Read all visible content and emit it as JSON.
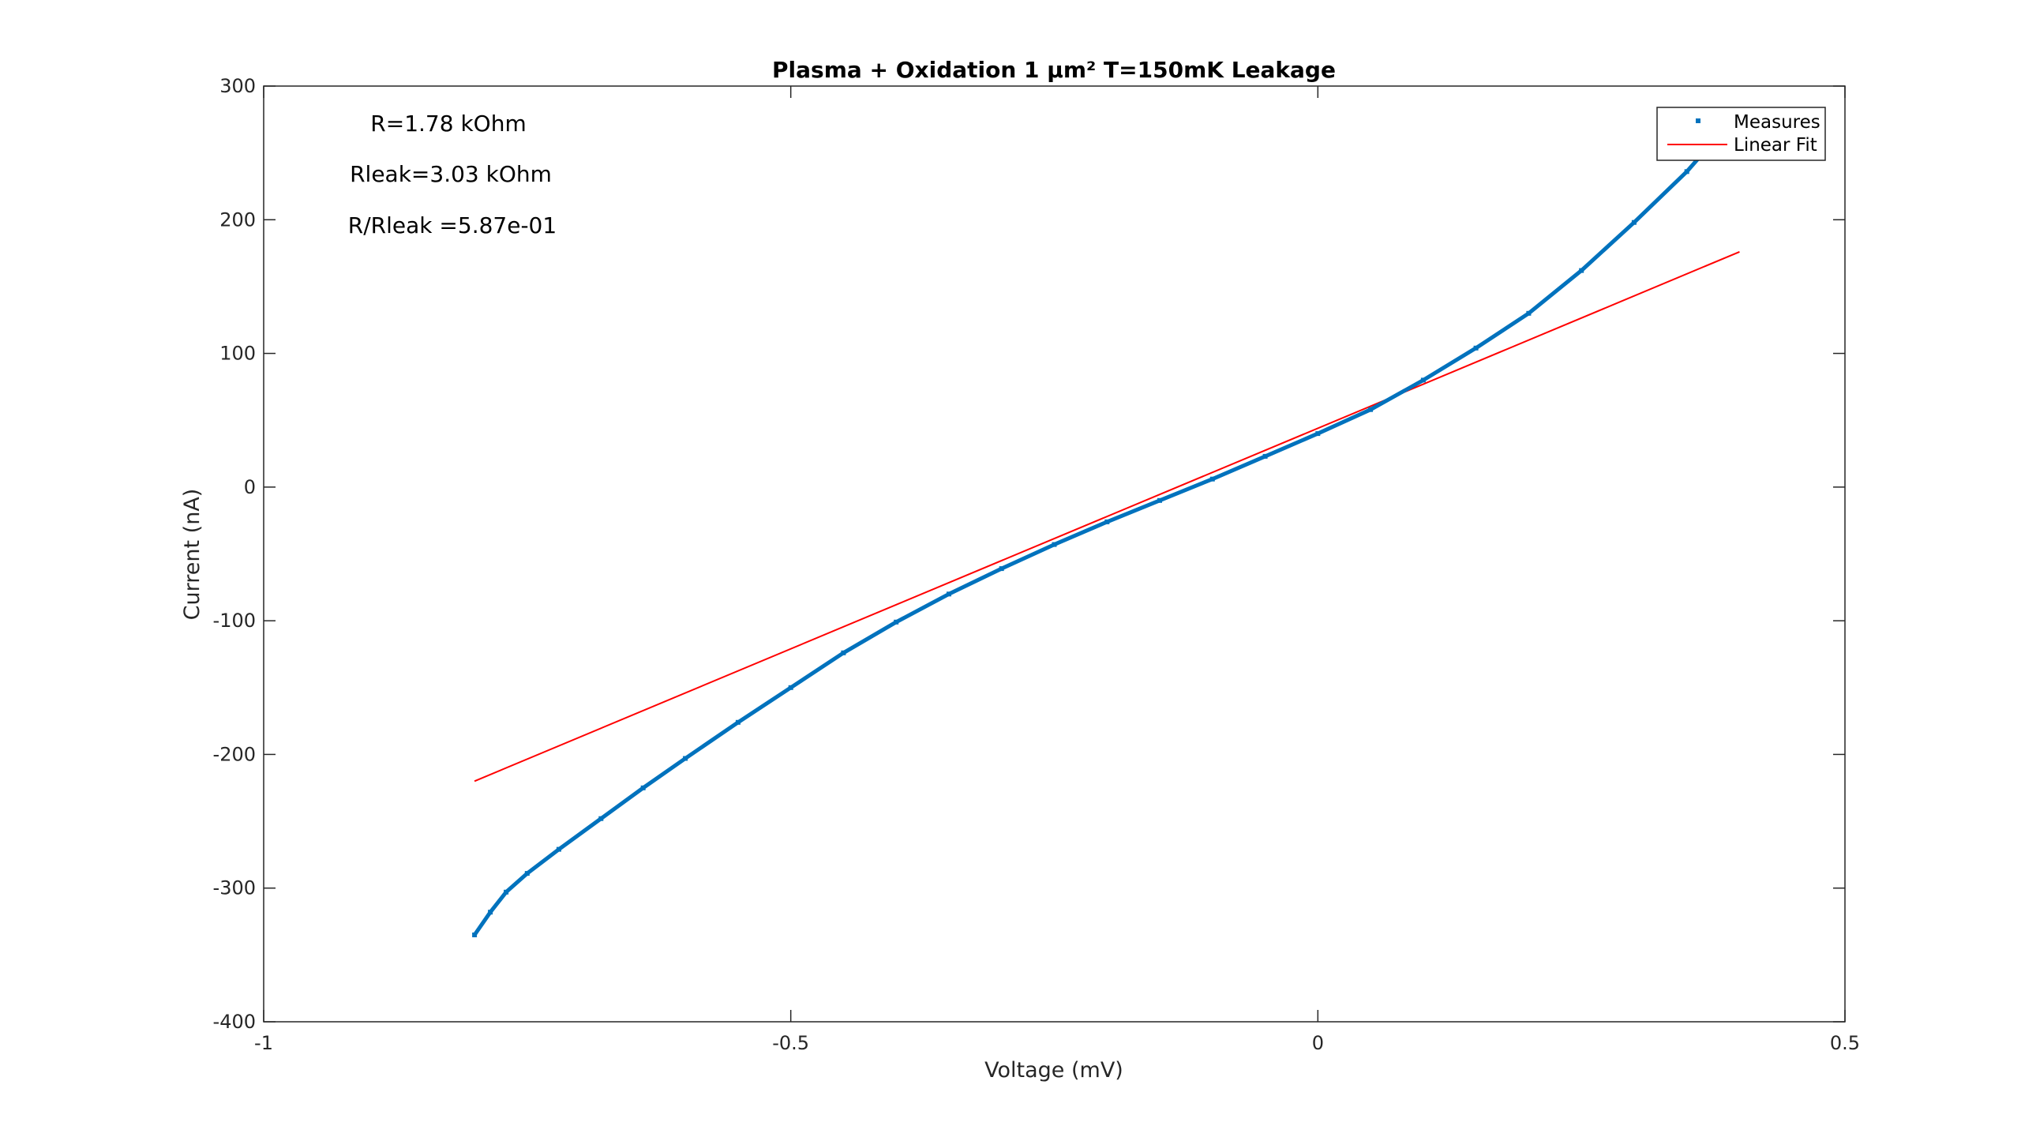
{
  "chart_data": {
    "type": "line",
    "title": "Plasma + Oxidation 1 µm² T=150mK Leakage",
    "xlabel": "Voltage (mV)",
    "ylabel": "Current (nA)",
    "xlim": [
      -1,
      0.5
    ],
    "ylim": [
      -400,
      300
    ],
    "xticks": [
      -1,
      -0.5,
      0,
      0.5
    ],
    "xtick_labels": [
      "-1",
      "-0.5",
      "0",
      "0.5"
    ],
    "yticks": [
      -400,
      -300,
      -200,
      -100,
      0,
      100,
      200,
      300
    ],
    "ytick_labels": [
      "-400",
      "-300",
      "-200",
      "-100",
      "0",
      "100",
      "200",
      "300"
    ],
    "grid": false,
    "legend_position": "top-right",
    "annotations": [
      "R=1.78 kOhm",
      "Rleak=3.03 kOhm",
      "R/Rleak =5.87e-01"
    ],
    "series": [
      {
        "name": "Measures",
        "style": "markers",
        "color": "#0072BD",
        "x": [
          -0.8,
          -0.785,
          -0.77,
          -0.75,
          -0.72,
          -0.68,
          -0.64,
          -0.6,
          -0.55,
          -0.5,
          -0.45,
          -0.4,
          -0.35,
          -0.3,
          -0.25,
          -0.2,
          -0.15,
          -0.1,
          -0.05,
          0.0,
          0.05,
          0.1,
          0.15,
          0.2,
          0.25,
          0.3,
          0.35,
          0.37
        ],
        "y": [
          -335,
          -318,
          -303,
          -289,
          -271,
          -248,
          -225,
          -203,
          -176,
          -150,
          -124,
          -101,
          -80,
          -61,
          -43,
          -26,
          -10,
          6,
          23,
          40,
          58,
          80,
          104,
          130,
          162,
          198,
          236,
          254
        ]
      },
      {
        "name": "Linear Fit",
        "style": "line",
        "color": "#FF0000",
        "x": [
          -0.8,
          0.4
        ],
        "y": [
          -220,
          176
        ]
      }
    ]
  }
}
